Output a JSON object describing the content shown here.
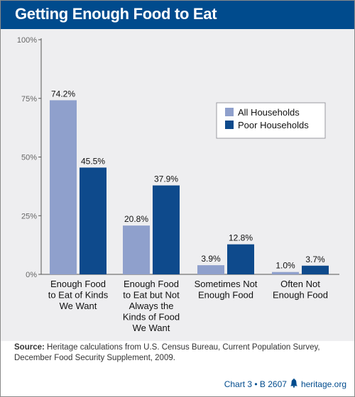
{
  "title": "Getting Enough Food to Eat",
  "chart_data": {
    "type": "bar",
    "title": "Getting Enough Food to Eat",
    "categories": [
      "Enough Food to Eat of Kinds We Want",
      "Enough Food to Eat but Not Always the Kinds of Food We Want",
      "Sometimes Not Enough Food",
      "Often Not Enough Food"
    ],
    "category_lines": [
      [
        "Enough Food",
        "to Eat of Kinds",
        "We Want"
      ],
      [
        "Enough Food",
        "to Eat but Not",
        "Always the",
        "Kinds of Food",
        "We Want"
      ],
      [
        "Sometimes Not",
        "Enough Food"
      ],
      [
        "Often Not",
        "Enough Food"
      ]
    ],
    "series": [
      {
        "name": "All Households",
        "values": [
          74.2,
          20.8,
          3.9,
          1.0
        ],
        "labels": [
          "74.2%",
          "20.8%",
          "3.9%",
          "1.0%"
        ],
        "color": "#8fa0cc"
      },
      {
        "name": "Poor Households",
        "values": [
          45.5,
          37.9,
          12.8,
          3.7
        ],
        "labels": [
          "45.5%",
          "37.9%",
          "12.8%",
          "3.7%"
        ],
        "color": "#0e4a8c"
      }
    ],
    "yticks": [
      "100%",
      "75%",
      "50%",
      "25%",
      "0%"
    ],
    "ytick_values": [
      100,
      75,
      50,
      25,
      0
    ],
    "ylim": [
      0,
      100
    ],
    "legend": "top-right",
    "grid": false
  },
  "source_label": "Source:",
  "source_text": "Heritage calculations from U.S. Census Bureau, Current Population Survey, December Food Security Supplement, 2009.",
  "footer_chart": "Chart 3 • B 2607",
  "footer_site": "heritage.org",
  "colors": {
    "brand": "#004b8d",
    "panel": "#eeeef0"
  }
}
